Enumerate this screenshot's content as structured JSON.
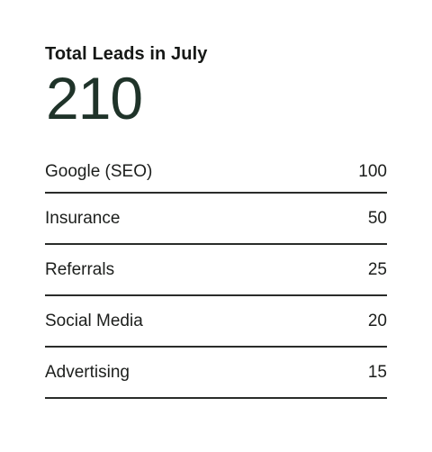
{
  "summary": {
    "title": "Total Leads in July",
    "total": "210"
  },
  "sources": [
    {
      "label": "Google (SEO)",
      "value": "100"
    },
    {
      "label": "Insurance",
      "value": "50"
    },
    {
      "label": "Referrals",
      "value": "25"
    },
    {
      "label": "Social Media",
      "value": "20"
    },
    {
      "label": "Advertising",
      "value": "15"
    }
  ],
  "colors": {
    "text": "#1c1e1c",
    "total": "#1f3329",
    "divider": "#2a2c2a",
    "background": "#ffffff"
  }
}
